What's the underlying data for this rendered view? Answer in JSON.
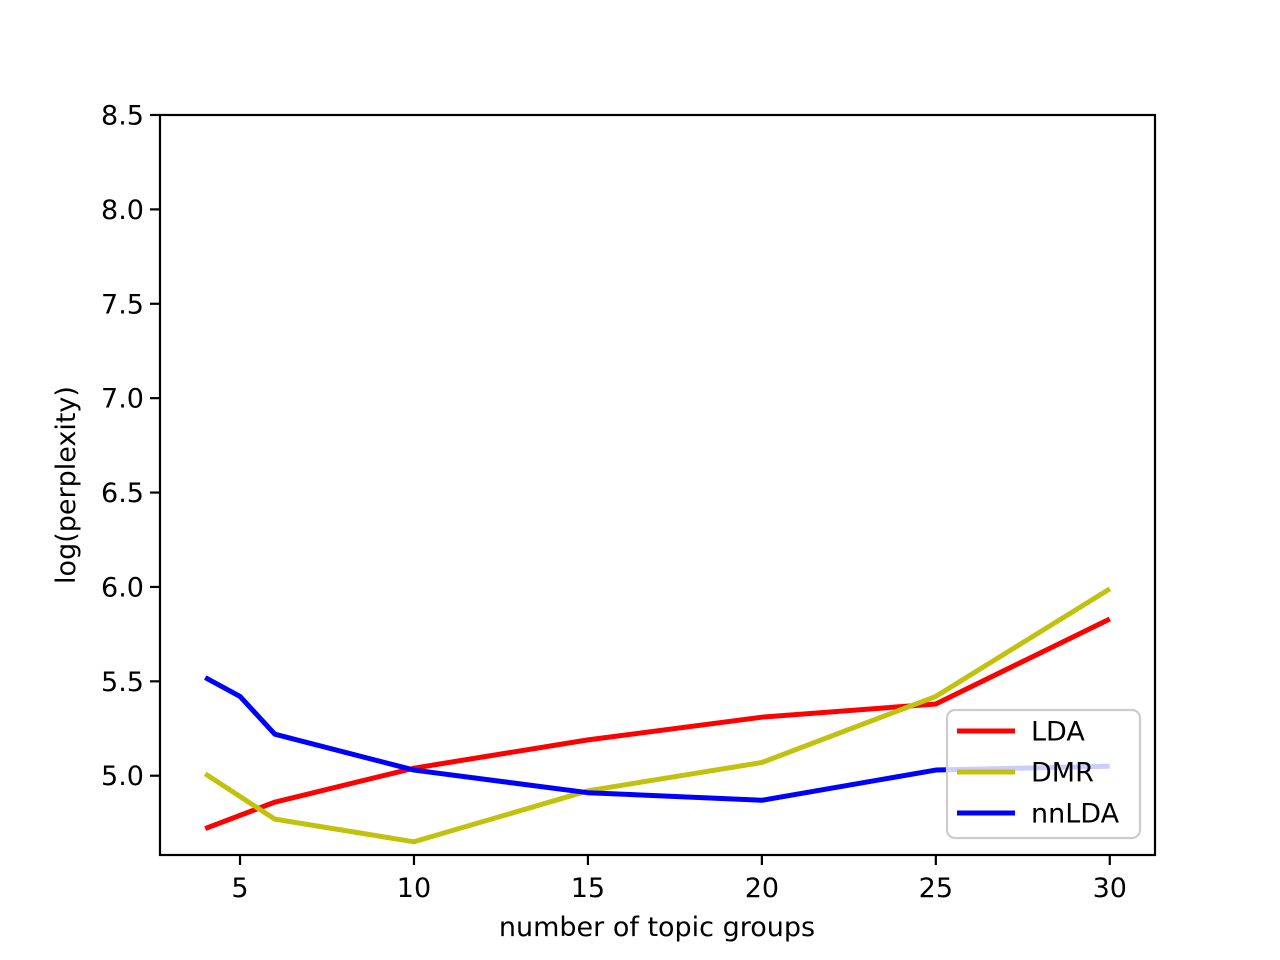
{
  "figure": {
    "background": "#ffffff"
  },
  "chart_data": {
    "type": "line",
    "title": "",
    "xlabel": "number of topic groups",
    "ylabel": "log(perplexity)",
    "x": [
      4,
      5,
      6,
      10,
      15,
      20,
      25,
      30
    ],
    "series": [
      {
        "name": "LDA",
        "color": "#ff0000",
        "values": [
          4.72,
          4.79,
          4.86,
          5.04,
          5.19,
          5.31,
          5.38,
          5.83
        ]
      },
      {
        "name": "DMR",
        "color": "#c2c20e",
        "values": [
          5.01,
          4.89,
          4.77,
          4.65,
          4.92,
          5.07,
          5.42,
          5.99
        ]
      },
      {
        "name": "nnLDA",
        "color": "#0000ff",
        "values": [
          5.52,
          5.42,
          5.22,
          5.03,
          4.91,
          4.87,
          5.03,
          5.05
        ]
      }
    ],
    "xlim": [
      2.7,
      31.3
    ],
    "ylim": [
      4.58,
      8.5
    ],
    "xticks": [
      5,
      10,
      15,
      20,
      25,
      30
    ],
    "xtick_labels": [
      "5",
      "10",
      "15",
      "20",
      "25",
      "30"
    ],
    "yticks": [
      5.0,
      5.5,
      6.0,
      6.5,
      7.0,
      7.5,
      8.0,
      8.5
    ],
    "ytick_labels": [
      "5.0",
      "5.5",
      "6.0",
      "6.5",
      "7.0",
      "7.5",
      "8.0",
      "8.5"
    ],
    "grid": false,
    "legend": {
      "position": "lower-right-inset",
      "entries": [
        "LDA",
        "DMR",
        "nnLDA"
      ]
    },
    "axis_color": "#000000",
    "legend_border_color": "#cccccc",
    "legend_bg": "rgba(255,255,255,0.8)"
  }
}
